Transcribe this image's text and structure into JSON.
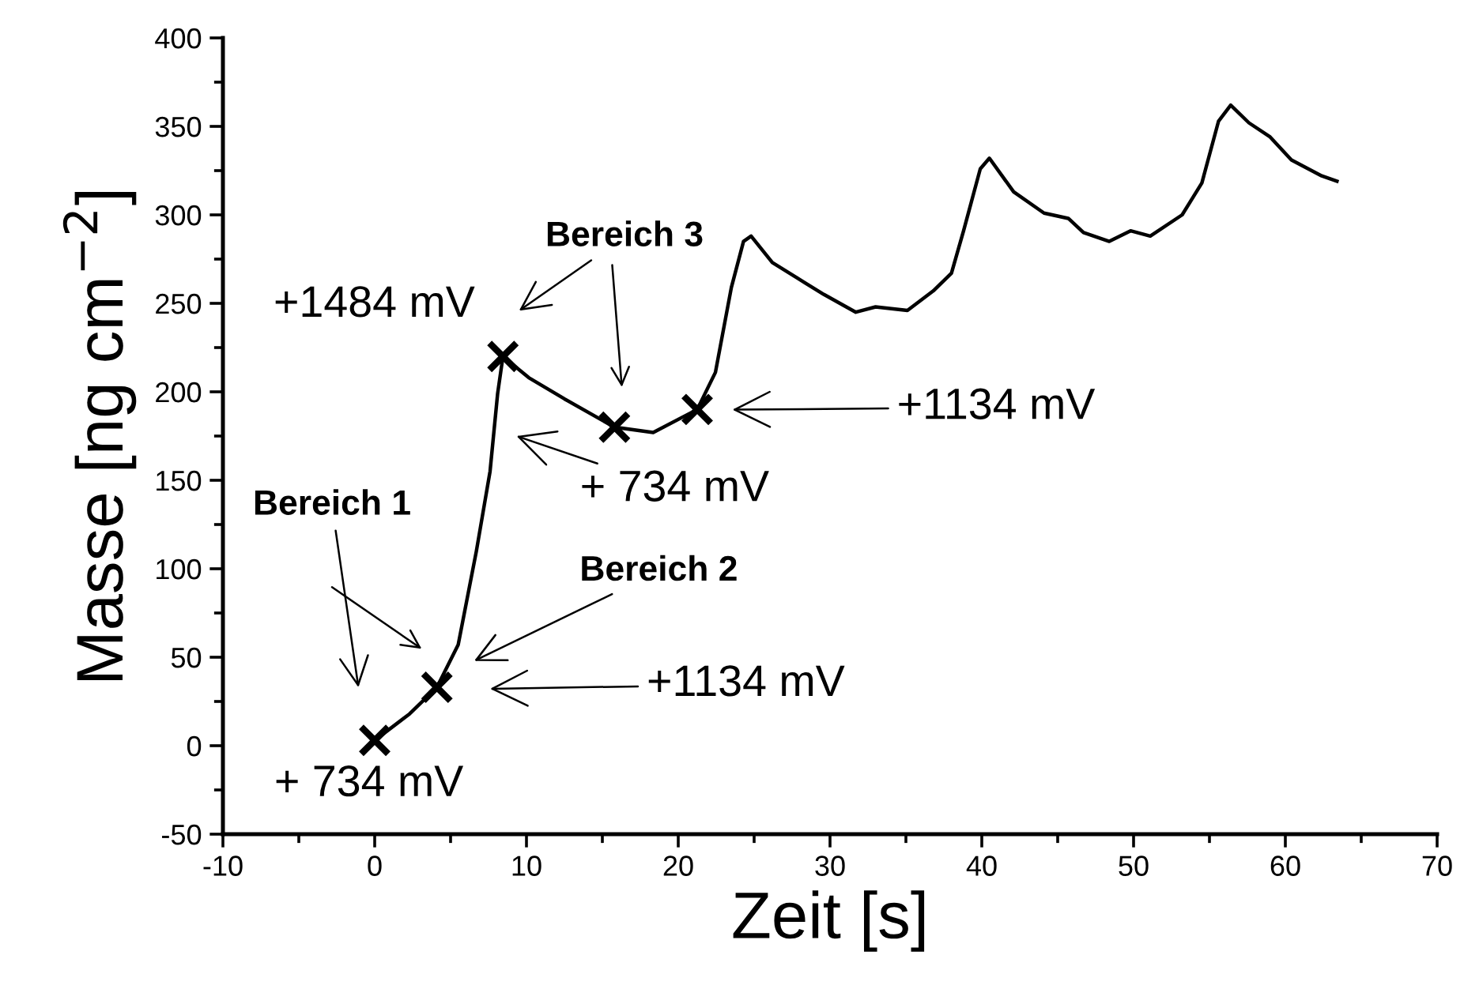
{
  "chart_data": {
    "type": "line",
    "xlabel": "Zeit [s]",
    "ylabel": "Masse [ng cm$^{−2}$]",
    "xlim": [
      -10,
      70
    ],
    "xticks": [
      -10,
      0,
      10,
      20,
      30,
      40,
      50,
      60,
      70
    ],
    "ylim": [
      -50,
      400
    ],
    "yticks": [
      -50,
      0,
      50,
      100,
      150,
      200,
      250,
      300,
      350,
      400
    ],
    "grid": false,
    "legend": false,
    "series": [
      {
        "color": "#000000",
        "marker": "none",
        "x": [
          0,
          2.3,
          4.1,
          5.5,
          6.7,
          7.6,
          8.1,
          8.45,
          10.15,
          12.5,
          15.8,
          18.35,
          21.25,
          22.45,
          23.5,
          24.3,
          24.8,
          26.2,
          27.9,
          29.6,
          31.7,
          33.0,
          35.1,
          36.8,
          38.0,
          38.8,
          39.9,
          40.5,
          42.1,
          44.1,
          45.7,
          46.7,
          48.4,
          49.8,
          51.1,
          53.2,
          54.5,
          55.6,
          56.4,
          57.6,
          59.0,
          60.4,
          62.4,
          63.4
        ],
        "values": [
          3,
          18,
          33,
          57,
          110,
          155,
          199,
          220,
          208,
          196,
          180,
          177,
          190,
          211,
          259,
          285,
          288,
          273,
          264,
          255,
          245,
          248,
          246,
          257,
          267,
          291,
          326,
          332,
          313,
          301,
          298,
          290,
          285,
          291,
          288,
          300,
          318,
          353,
          362,
          352,
          344,
          331,
          322,
          319
        ]
      },
      {
        "type": "scatter",
        "color": "#000000",
        "marker": "cross",
        "x": [
          0,
          4.1,
          8.45,
          15.8,
          21.25
        ],
        "values": [
          3,
          33,
          220,
          180,
          190
        ]
      }
    ],
    "annotations": [
      "Bereich 1",
      "Bereich 2",
      "Bereich 3",
      "+1484 mV",
      "+ 734 mV",
      "+1134 mV",
      "+ 734 mV",
      "+1134 mV"
    ]
  }
}
